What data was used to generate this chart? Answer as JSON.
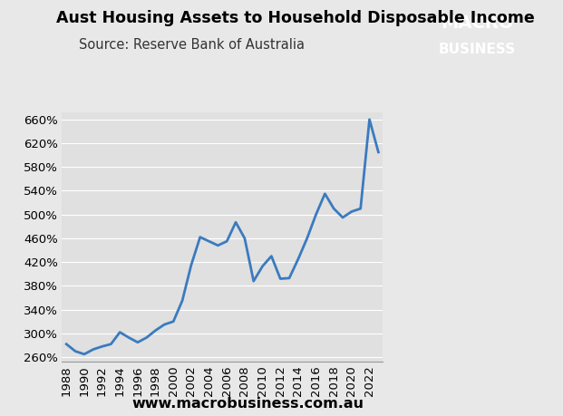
{
  "title": "Aust Housing Assets to Household Disposable Income",
  "source": "Source: Reserve Bank of Australia",
  "website": "www.macrobusiness.com.au",
  "line_color": "#3a7bbf",
  "line_width": 2.0,
  "background_color": "#e8e8e8",
  "plot_bg_color": "#e0e0e0",
  "yticks": [
    260,
    300,
    340,
    380,
    420,
    460,
    500,
    540,
    580,
    620,
    660
  ],
  "ylim": [
    252,
    672
  ],
  "years": [
    1988,
    1989,
    1990,
    1991,
    1992,
    1993,
    1994,
    1995,
    1996,
    1997,
    1998,
    1999,
    2000,
    2001,
    2002,
    2003,
    2004,
    2005,
    2006,
    2007,
    2008,
    2009,
    2010,
    2011,
    2012,
    2013,
    2014,
    2015,
    2016,
    2017,
    2018,
    2019,
    2020,
    2021,
    2022,
    2023
  ],
  "values": [
    282,
    270,
    265,
    273,
    278,
    282,
    302,
    293,
    285,
    293,
    305,
    315,
    320,
    355,
    415,
    462,
    455,
    448,
    455,
    487,
    460,
    388,
    413,
    430,
    392,
    393,
    425,
    460,
    500,
    535,
    510,
    495,
    505,
    510,
    660,
    605
  ],
  "macro_logo_color": "#cc0000",
  "title_fontsize": 12.5,
  "source_fontsize": 10.5,
  "tick_fontsize": 9.5,
  "website_fontsize": 11.5,
  "logo_macro_fontsize": 14,
  "logo_business_fontsize": 11
}
